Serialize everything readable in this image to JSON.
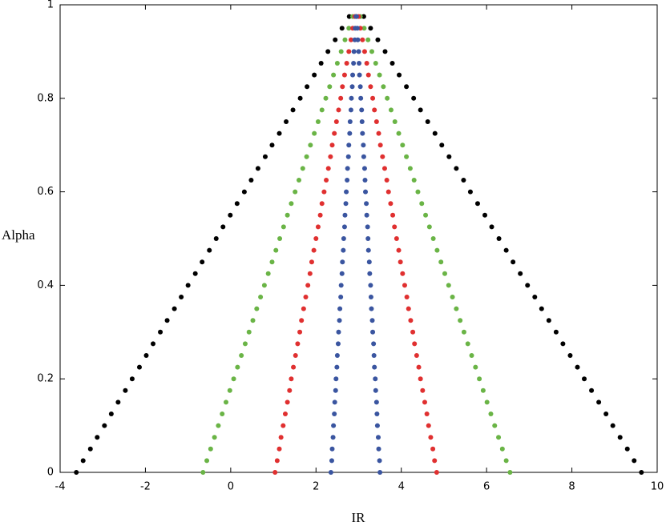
{
  "chart_data": {
    "type": "scatter",
    "xlabel": "IR",
    "ylabel": "Alpha",
    "xlim": [
      -4,
      10
    ],
    "xticks": [
      -4,
      -2,
      0,
      2,
      4,
      6,
      8,
      10
    ],
    "ylim": [
      0,
      1
    ],
    "yticks": [
      0,
      0.2,
      0.4,
      0.6,
      0.8,
      1
    ],
    "y": [
      0,
      0.025,
      0.05,
      0.075,
      0.1,
      0.125,
      0.15,
      0.175,
      0.2,
      0.225,
      0.25,
      0.275,
      0.3,
      0.325,
      0.35,
      0.375,
      0.4,
      0.425,
      0.45,
      0.475,
      0.5,
      0.525,
      0.55,
      0.575,
      0.6,
      0.625,
      0.65,
      0.675,
      0.7,
      0.725,
      0.75,
      0.775,
      0.8,
      0.825,
      0.85,
      0.875,
      0.9,
      0.925,
      0.95,
      0.975
    ],
    "series": [
      {
        "color": "#000000",
        "x_left": [
          -3.62,
          -3.46,
          -3.29,
          -3.13,
          -2.96,
          -2.8,
          -2.64,
          -2.47,
          -2.31,
          -2.14,
          -1.98,
          -1.82,
          -1.65,
          -1.49,
          -1.32,
          -1.16,
          -1.0,
          -0.83,
          -0.67,
          -0.5,
          -0.34,
          -0.18,
          -0.01,
          0.15,
          0.32,
          0.48,
          0.64,
          0.81,
          0.97,
          1.14,
          1.3,
          1.46,
          1.63,
          1.79,
          1.96,
          2.12,
          2.28,
          2.45,
          2.61,
          2.78
        ],
        "x_right": [
          9.63,
          9.46,
          9.3,
          9.13,
          8.96,
          8.8,
          8.63,
          8.46,
          8.29,
          8.13,
          7.96,
          7.79,
          7.63,
          7.46,
          7.29,
          7.13,
          6.96,
          6.79,
          6.62,
          6.46,
          6.29,
          6.12,
          5.96,
          5.79,
          5.62,
          5.46,
          5.29,
          5.12,
          4.95,
          4.79,
          4.62,
          4.45,
          4.29,
          4.12,
          3.95,
          3.79,
          3.62,
          3.45,
          3.28,
          3.12
        ]
      },
      {
        "color": "#6ab446",
        "x_left": [
          -0.65,
          -0.56,
          -0.47,
          -0.38,
          -0.29,
          -0.2,
          -0.11,
          -0.02,
          0.07,
          0.16,
          0.25,
          0.34,
          0.43,
          0.52,
          0.61,
          0.7,
          0.79,
          0.88,
          0.97,
          1.06,
          1.15,
          1.24,
          1.33,
          1.42,
          1.51,
          1.6,
          1.69,
          1.78,
          1.87,
          1.96,
          2.05,
          2.14,
          2.23,
          2.32,
          2.41,
          2.5,
          2.59,
          2.68,
          2.77,
          2.86
        ],
        "x_right": [
          6.55,
          6.46,
          6.37,
          6.28,
          6.19,
          6.1,
          6.01,
          5.92,
          5.83,
          5.74,
          5.65,
          5.56,
          5.47,
          5.38,
          5.29,
          5.2,
          5.11,
          5.02,
          4.93,
          4.84,
          4.75,
          4.66,
          4.57,
          4.48,
          4.39,
          4.3,
          4.21,
          4.12,
          4.03,
          3.94,
          3.85,
          3.76,
          3.67,
          3.58,
          3.49,
          3.4,
          3.31,
          3.22,
          3.13,
          3.04
        ]
      },
      {
        "color": "#e03030",
        "x_left": [
          1.04,
          1.09,
          1.14,
          1.18,
          1.23,
          1.28,
          1.33,
          1.38,
          1.42,
          1.47,
          1.52,
          1.57,
          1.62,
          1.66,
          1.71,
          1.76,
          1.81,
          1.86,
          1.9,
          1.95,
          2.0,
          2.05,
          2.1,
          2.14,
          2.19,
          2.24,
          2.29,
          2.34,
          2.38,
          2.43,
          2.48,
          2.53,
          2.58,
          2.62,
          2.67,
          2.72,
          2.77,
          2.82,
          2.86,
          2.91
        ],
        "x_right": [
          4.83,
          4.78,
          4.74,
          4.69,
          4.64,
          4.6,
          4.55,
          4.5,
          4.45,
          4.41,
          4.36,
          4.31,
          4.27,
          4.22,
          4.17,
          4.13,
          4.08,
          4.03,
          3.98,
          3.94,
          3.89,
          3.84,
          3.8,
          3.75,
          3.7,
          3.66,
          3.61,
          3.56,
          3.51,
          3.47,
          3.42,
          3.37,
          3.33,
          3.28,
          3.23,
          3.19,
          3.14,
          3.09,
          3.04,
          3.0
        ]
      },
      {
        "color": "#3a55a0",
        "x_left": [
          2.35,
          2.37,
          2.38,
          2.4,
          2.41,
          2.43,
          2.44,
          2.46,
          2.47,
          2.49,
          2.5,
          2.52,
          2.53,
          2.55,
          2.56,
          2.58,
          2.59,
          2.61,
          2.62,
          2.64,
          2.65,
          2.67,
          2.68,
          2.7,
          2.71,
          2.73,
          2.74,
          2.76,
          2.77,
          2.79,
          2.8,
          2.82,
          2.83,
          2.85,
          2.86,
          2.88,
          2.89,
          2.91,
          2.92,
          2.94
        ],
        "x_right": [
          3.5,
          3.49,
          3.47,
          3.46,
          3.44,
          3.43,
          3.42,
          3.4,
          3.39,
          3.37,
          3.36,
          3.35,
          3.33,
          3.32,
          3.3,
          3.29,
          3.28,
          3.26,
          3.25,
          3.23,
          3.22,
          3.21,
          3.19,
          3.18,
          3.16,
          3.15,
          3.14,
          3.12,
          3.11,
          3.09,
          3.08,
          3.07,
          3.05,
          3.04,
          3.02,
          3.01,
          3.0,
          2.98,
          2.97,
          2.95
        ]
      }
    ]
  }
}
